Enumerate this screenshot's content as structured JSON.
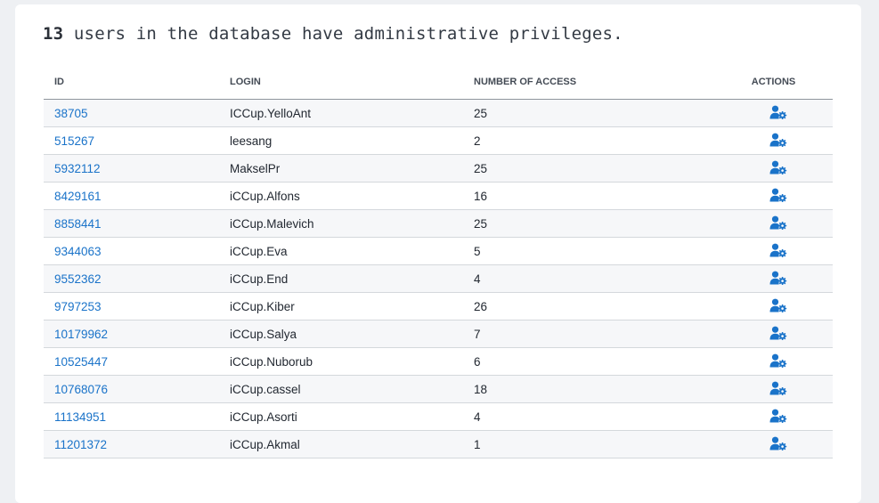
{
  "headline": {
    "count": "13",
    "text": " users in the database have administrative privileges."
  },
  "table": {
    "columns": [
      "ID",
      "LOGIN",
      "NUMBER OF ACCESS",
      "ACTIONS"
    ],
    "action_icon": "user-gear-icon",
    "accent_color": "#1a73c9",
    "rows": [
      {
        "id": "38705",
        "login": "ICCup.YelloAnt",
        "access": "25"
      },
      {
        "id": "515267",
        "login": "leesang",
        "access": "2"
      },
      {
        "id": "5932112",
        "login": "MakselPr",
        "access": "25"
      },
      {
        "id": "8429161",
        "login": "iCCup.Alfons",
        "access": "16"
      },
      {
        "id": "8858441",
        "login": "iCCup.Malevich",
        "access": "25"
      },
      {
        "id": "9344063",
        "login": "iCCup.Eva",
        "access": "5"
      },
      {
        "id": "9552362",
        "login": "iCCup.End",
        "access": "4"
      },
      {
        "id": "9797253",
        "login": "iCCup.Kiber",
        "access": "26"
      },
      {
        "id": "10179962",
        "login": "iCCup.Salya",
        "access": "7"
      },
      {
        "id": "10525447",
        "login": "iCCup.Nuborub",
        "access": "6"
      },
      {
        "id": "10768076",
        "login": "iCCup.cassel",
        "access": "18"
      },
      {
        "id": "11134951",
        "login": "iCCup.Asorti",
        "access": "4"
      },
      {
        "id": "11201372",
        "login": "iCCup.Akmal",
        "access": "1"
      }
    ]
  }
}
